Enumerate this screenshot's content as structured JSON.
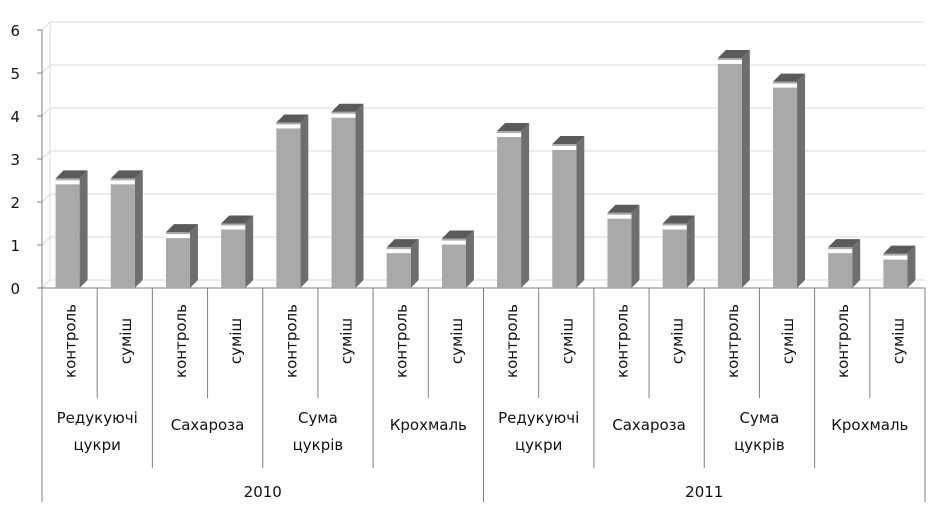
{
  "chart_data": {
    "type": "bar",
    "style": "3d-column",
    "title": "",
    "xlabel": "",
    "ylabel": "",
    "ylim": [
      0,
      6
    ],
    "yticks": [
      "0",
      "1",
      "2",
      "3",
      "4",
      "5",
      "6"
    ],
    "grid": true,
    "legend": "none",
    "colors": {
      "bar_front": "#a9a9a9",
      "bar_side": "#6e6e6e",
      "bar_top": "#5a5a5a",
      "grid": "#d9d9d9",
      "axis": "#7f7f7f"
    },
    "categories": [
      "контроль",
      "суміш",
      "контроль",
      "суміш",
      "контроль",
      "суміш",
      "контроль",
      "суміш",
      "контроль",
      "суміш",
      "контроль",
      "суміш",
      "контроль",
      "суміш",
      "контроль",
      "суміш"
    ],
    "groups": [
      {
        "label_lines": [
          "Редукуючі",
          "цукри"
        ],
        "span": [
          0,
          1
        ]
      },
      {
        "label_lines": [
          "Сахароза"
        ],
        "span": [
          2,
          3
        ]
      },
      {
        "label_lines": [
          "Сума",
          "цукрів"
        ],
        "span": [
          4,
          5
        ]
      },
      {
        "label_lines": [
          "Крохмаль"
        ],
        "span": [
          6,
          7
        ]
      },
      {
        "label_lines": [
          "Редукуючі",
          "цукри"
        ],
        "span": [
          8,
          9
        ]
      },
      {
        "label_lines": [
          "Сахароза"
        ],
        "span": [
          10,
          11
        ]
      },
      {
        "label_lines": [
          "Сума",
          "цукрів"
        ],
        "span": [
          12,
          13
        ]
      },
      {
        "label_lines": [
          "Крохмаль"
        ],
        "span": [
          14,
          15
        ]
      }
    ],
    "years": [
      {
        "label": "2010",
        "span": [
          0,
          7
        ]
      },
      {
        "label": "2011",
        "span": [
          8,
          15
        ]
      }
    ],
    "values": [
      2.55,
      2.55,
      1.3,
      1.5,
      3.85,
      4.1,
      0.95,
      1.15,
      3.65,
      3.35,
      1.75,
      1.5,
      5.35,
      4.8,
      0.95,
      0.8
    ]
  }
}
